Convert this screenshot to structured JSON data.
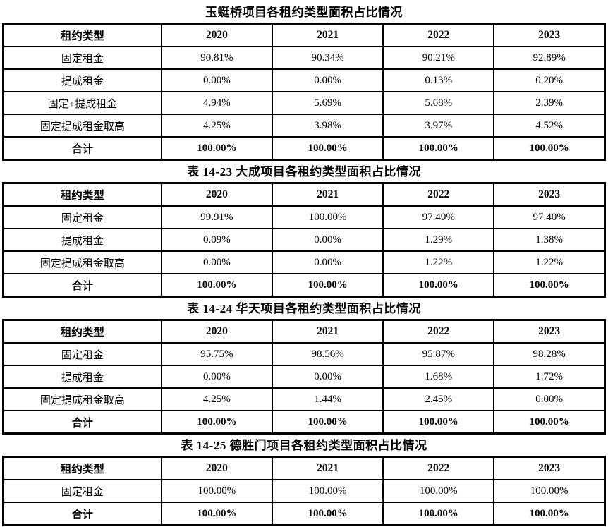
{
  "page": {
    "background": "#ffffff",
    "text_color": "#000000",
    "border_color": "#000000"
  },
  "tables": [
    {
      "title": "玉蜓桥项目各租约类型面积占比情况",
      "columns": [
        "租约类型",
        "2020",
        "2021",
        "2022",
        "2023"
      ],
      "rows": [
        {
          "label": "固定租金",
          "values": [
            "90.81%",
            "90.34%",
            "90.21%",
            "92.89%"
          ]
        },
        {
          "label": "提成租金",
          "values": [
            "0.00%",
            "0.00%",
            "0.13%",
            "0.20%"
          ]
        },
        {
          "label": "固定+提成租金",
          "values": [
            "4.94%",
            "5.69%",
            "5.68%",
            "2.39%"
          ]
        },
        {
          "label": "固定提成租金取高",
          "values": [
            "4.25%",
            "3.98%",
            "3.97%",
            "4.52%"
          ]
        },
        {
          "label": "合计",
          "values": [
            "100.00%",
            "100.00%",
            "100.00%",
            "100.00%"
          ]
        }
      ]
    },
    {
      "title": "表 14-23 大成项目各租约类型面积占比情况",
      "columns": [
        "租约类型",
        "2020",
        "2021",
        "2022",
        "2023"
      ],
      "rows": [
        {
          "label": "固定租金",
          "values": [
            "99.91%",
            "100.00%",
            "97.49%",
            "97.40%"
          ]
        },
        {
          "label": "提成租金",
          "values": [
            "0.09%",
            "0.00%",
            "1.29%",
            "1.38%"
          ]
        },
        {
          "label": "固定提成租金取高",
          "values": [
            "0.00%",
            "0.00%",
            "1.22%",
            "1.22%"
          ]
        },
        {
          "label": "合计",
          "values": [
            "100.00%",
            "100.00%",
            "100.00%",
            "100.00%"
          ]
        }
      ]
    },
    {
      "title": "表 14-24 华天项目各租约类型面积占比情况",
      "columns": [
        "租约类型",
        "2020",
        "2021",
        "2022",
        "2023"
      ],
      "rows": [
        {
          "label": "固定租金",
          "values": [
            "95.75%",
            "98.56%",
            "95.87%",
            "98.28%"
          ]
        },
        {
          "label": "提成租金",
          "values": [
            "0.00%",
            "0.00%",
            "1.68%",
            "1.72%"
          ]
        },
        {
          "label": "固定提成租金取高",
          "values": [
            "4.25%",
            "1.44%",
            "2.45%",
            "0.00%"
          ]
        },
        {
          "label": "合计",
          "values": [
            "100.00%",
            "100.00%",
            "100.00%",
            "100.00%"
          ]
        }
      ]
    },
    {
      "title": "表 14-25 德胜门项目各租约类型面积占比情况",
      "columns": [
        "租约类型",
        "2020",
        "2021",
        "2022",
        "2023"
      ],
      "rows": [
        {
          "label": "固定租金",
          "values": [
            "100.00%",
            "100.00%",
            "100.00%",
            "100.00%"
          ]
        },
        {
          "label": "合计",
          "values": [
            "100.00%",
            "100.00%",
            "100.00%",
            "100.00%"
          ]
        }
      ]
    }
  ]
}
